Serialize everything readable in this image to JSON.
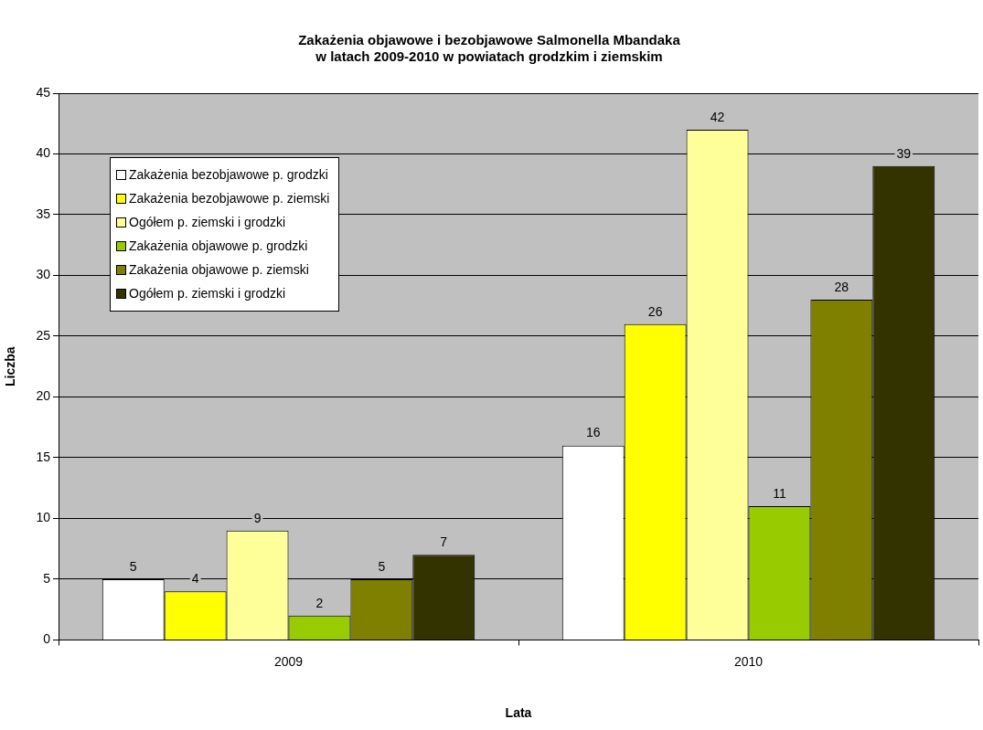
{
  "chart_data": {
    "type": "bar",
    "title": "Zakażenia objawowe i bezobjawowe Salmonella Mbandaka\nw latach 2009-2010 w powiatach grodzkim i ziemskim",
    "xlabel": "Lata",
    "ylabel": "Liczba",
    "categories": [
      "2009",
      "2010"
    ],
    "series": [
      {
        "name": "Zakażenia bezobjawowe p. grodzki",
        "color": "#ffffff",
        "values": [
          5,
          16
        ]
      },
      {
        "name": "Zakażenia bezobjawowe p. ziemski",
        "color": "#ffff00",
        "values": [
          4,
          26
        ]
      },
      {
        "name": "Ogółem p. ziemski i grodzki",
        "color": "#ffff99",
        "values": [
          9,
          42
        ]
      },
      {
        "name": "Zakażenia objawowe p. grodzki",
        "color": "#99cc00",
        "values": [
          2,
          11
        ]
      },
      {
        "name": "Zakażenia objawowe p. ziemski",
        "color": "#808000",
        "values": [
          5,
          28
        ]
      },
      {
        "name": "Ogółem p. ziemski i grodzki",
        "color": "#333300",
        "values": [
          7,
          39
        ]
      }
    ],
    "ylim": [
      0,
      45
    ],
    "yticks": [
      0,
      5,
      10,
      15,
      20,
      25,
      30,
      35,
      40,
      45
    ],
    "grid": "y",
    "legend": "top left",
    "data_labels": true
  }
}
